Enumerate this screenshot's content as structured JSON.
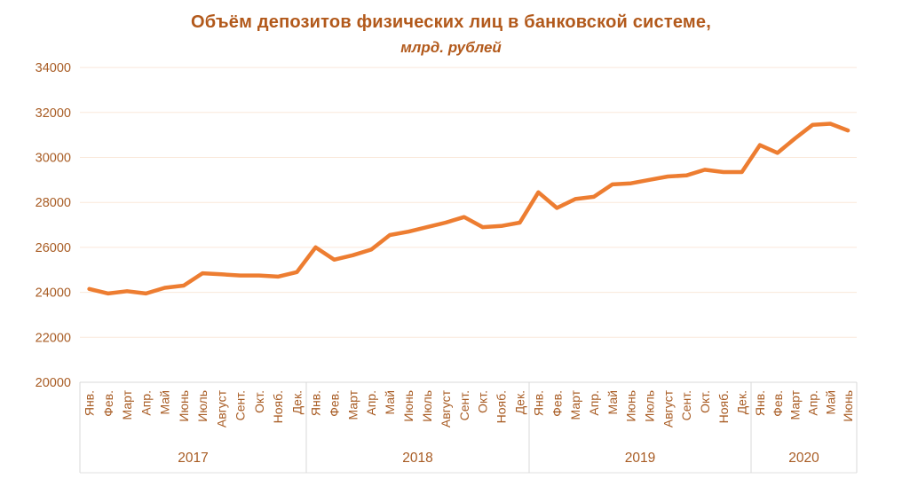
{
  "chart_data": {
    "type": "line",
    "title": "Объём депозитов физических лиц в банковской системе,",
    "subtitle": "млрд. рублей",
    "ylabel": "",
    "xlabel": "",
    "ylim": [
      20000,
      34000
    ],
    "ytick_step": 2000,
    "yticks": [
      34000,
      32000,
      30000,
      28000,
      26000,
      24000,
      22000,
      20000
    ],
    "legend": "none",
    "grid": "horizontal",
    "series_name": "Объём депозитов физических лиц",
    "groups": [
      {
        "year": "2017",
        "months": [
          "Янв.",
          "Фев.",
          "Март",
          "Апр.",
          "Май",
          "Июнь",
          "Июль",
          "Август",
          "Сент.",
          "Окт.",
          "Нояб.",
          "Дек."
        ],
        "values": [
          24150,
          23950,
          24050,
          23950,
          24200,
          24300,
          24850,
          24800,
          24750,
          24750,
          24700,
          24900
        ]
      },
      {
        "year": "2018",
        "months": [
          "Янв.",
          "Фев.",
          "Март",
          "Апр.",
          "Май",
          "Июнь",
          "Июль",
          "Август",
          "Сент.",
          "Окт.",
          "Нояб.",
          "Дек."
        ],
        "values": [
          26000,
          25450,
          25650,
          25900,
          26550,
          26700,
          26900,
          27100,
          27350,
          26900,
          26950,
          27100
        ]
      },
      {
        "year": "2019",
        "months": [
          "Янв.",
          "Фев.",
          "Март",
          "Апр.",
          "Май",
          "Июнь",
          "Июль",
          "Август",
          "Сент.",
          "Окт.",
          "Нояб.",
          "Дек."
        ],
        "values": [
          28450,
          27750,
          28150,
          28250,
          28800,
          28850,
          29000,
          29150,
          29200,
          29450,
          29350,
          29350
        ]
      },
      {
        "year": "2020",
        "months": [
          "Янв.",
          "Фев.",
          "Март",
          "Апр.",
          "Май",
          "Июнь"
        ],
        "values": [
          30550,
          30200,
          30850,
          31450,
          31500,
          31200
        ]
      }
    ],
    "colors": {
      "line": "#ED7D31",
      "title_text": "#B2591B",
      "axis_text": "#A85C24",
      "gridline": "#FAE8DA",
      "axis_line": "#D9D9D9"
    }
  }
}
